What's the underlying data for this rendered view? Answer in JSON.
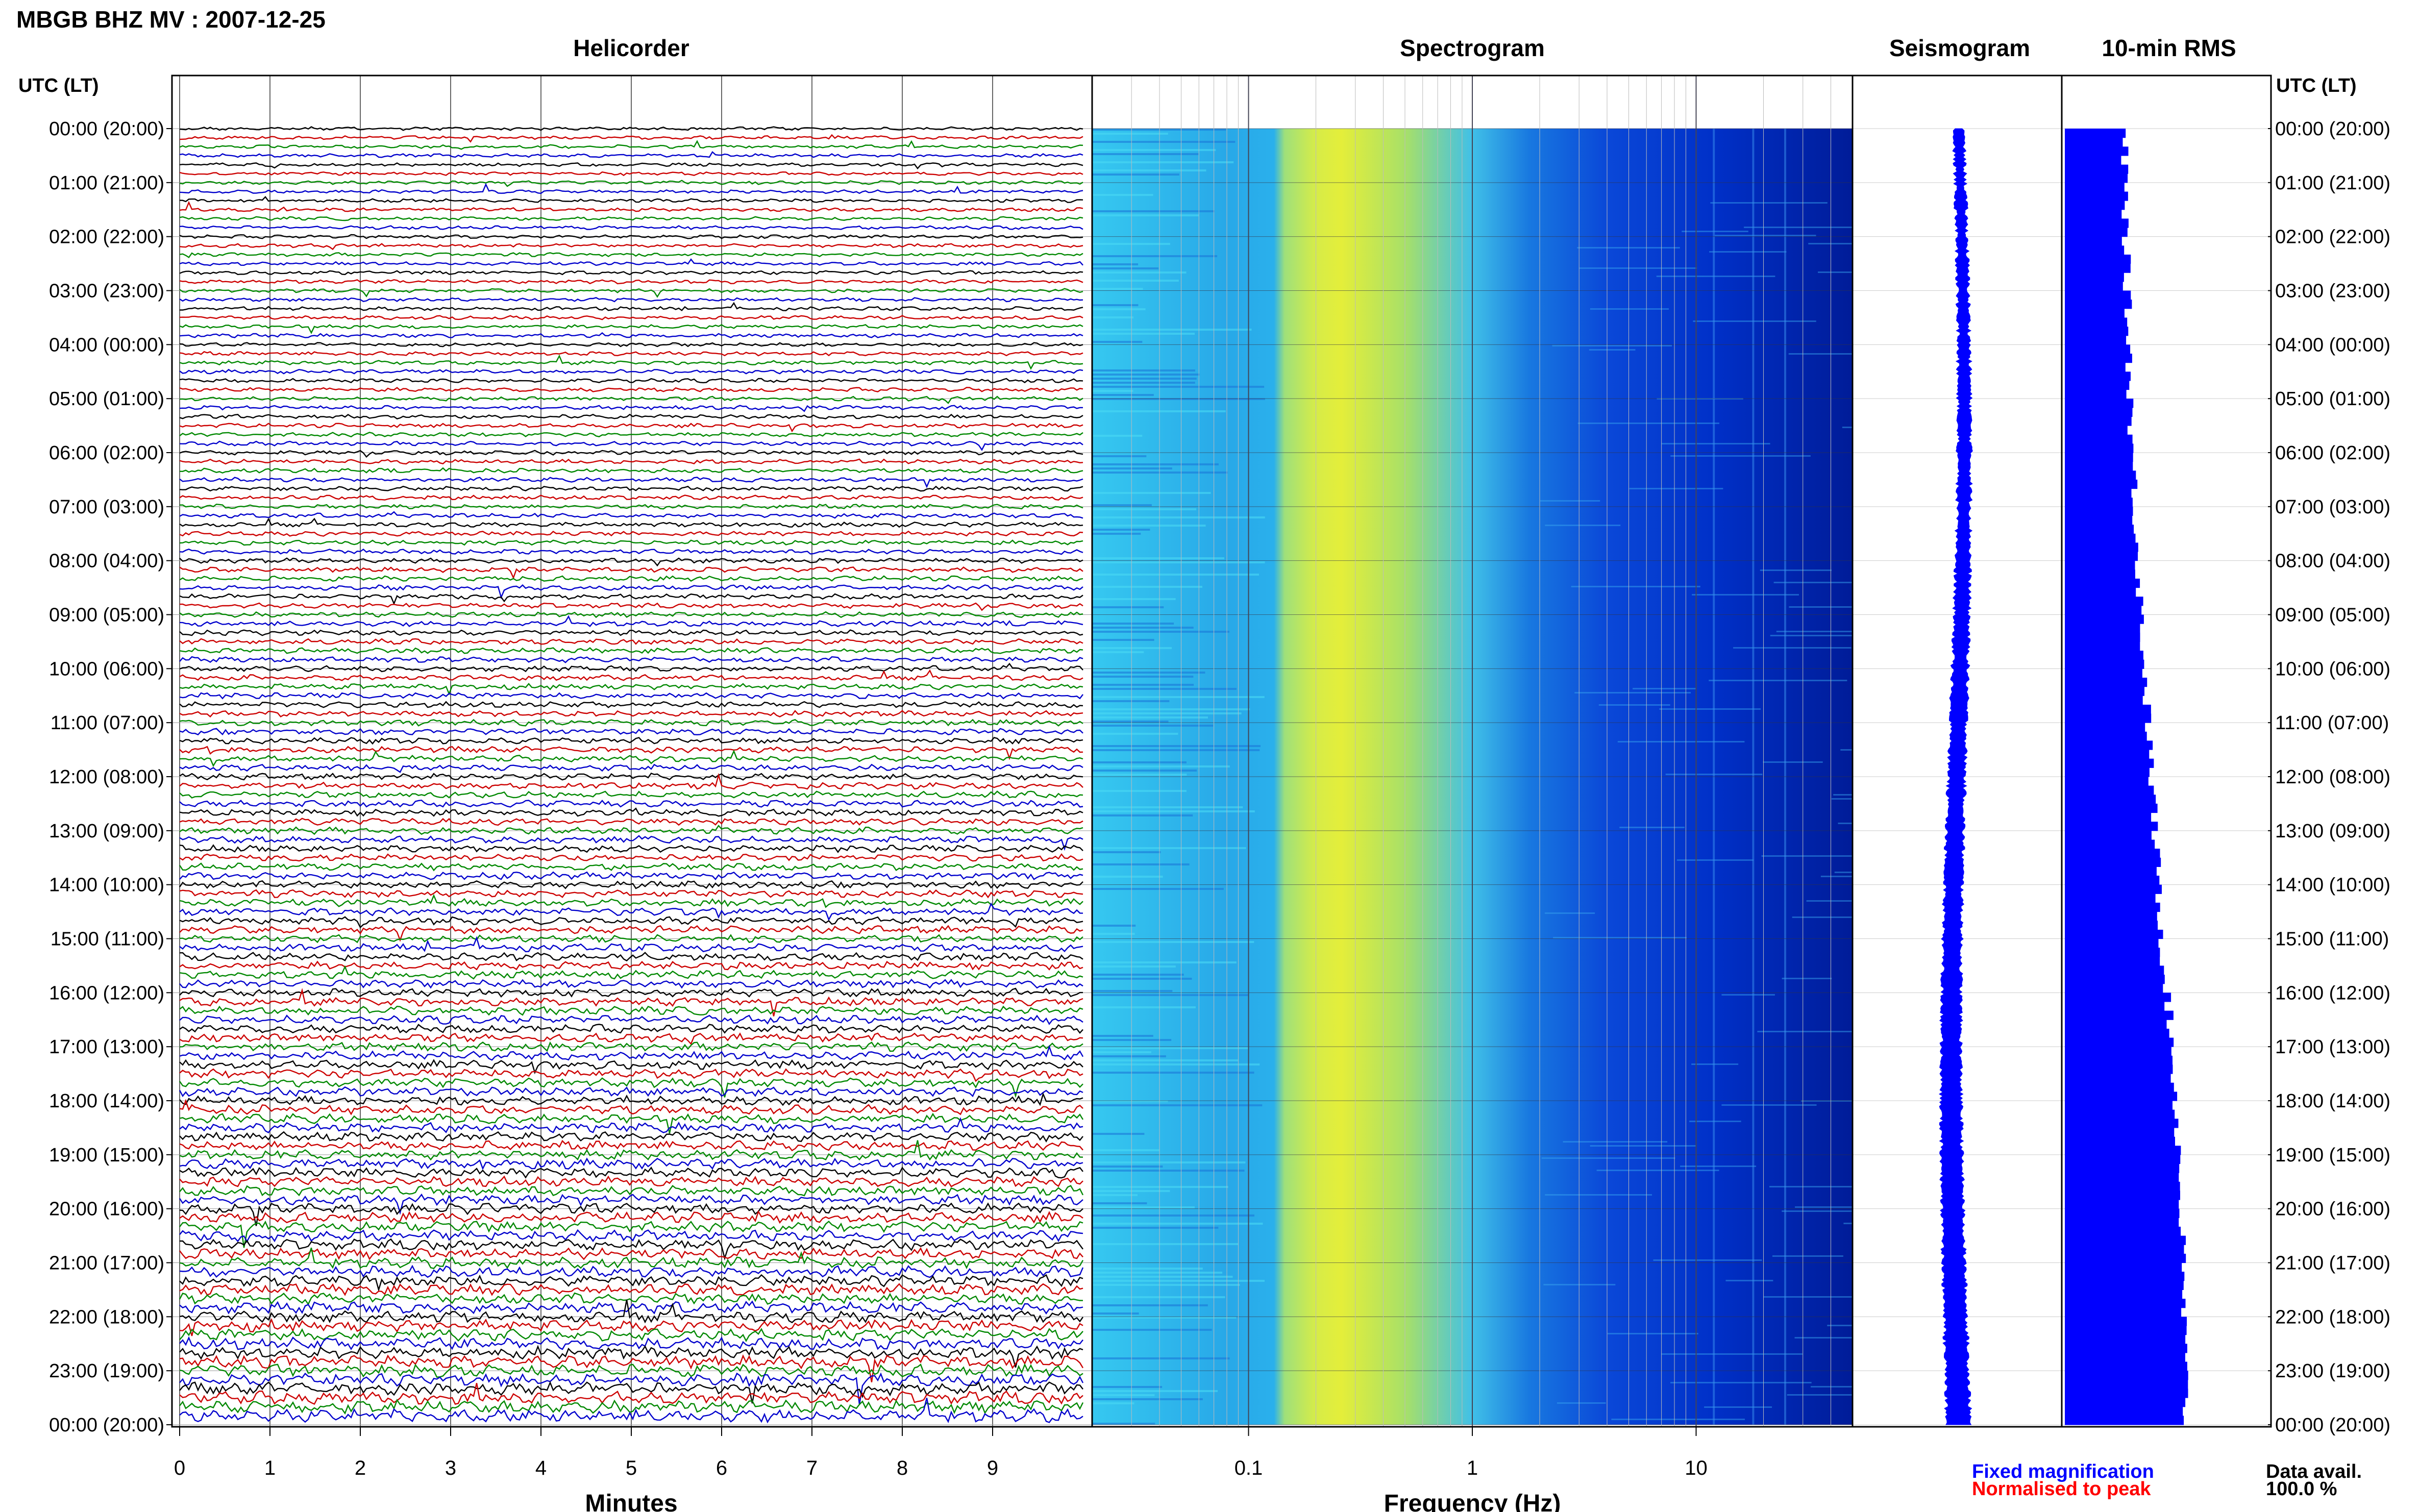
{
  "title": "MBGB BHZ MV : 2007-12-25",
  "panels": {
    "helicorder": "Helicorder",
    "spectrogram": "Spectrogram",
    "seismogram": "Seismogram",
    "rms": "10-min RMS"
  },
  "time_axis_label": "UTC (LT)",
  "time_labels": [
    "00:00 (20:00)",
    "01:00 (21:00)",
    "02:00 (22:00)",
    "03:00 (23:00)",
    "04:00 (00:00)",
    "05:00 (01:00)",
    "06:00 (02:00)",
    "07:00 (03:00)",
    "08:00 (04:00)",
    "09:00 (05:00)",
    "10:00 (06:00)",
    "11:00 (07:00)",
    "12:00 (08:00)",
    "13:00 (09:00)",
    "14:00 (10:00)",
    "15:00 (11:00)",
    "16:00 (12:00)",
    "17:00 (13:00)",
    "18:00 (14:00)",
    "19:00 (15:00)",
    "20:00 (16:00)",
    "21:00 (17:00)",
    "22:00 (18:00)",
    "23:00 (19:00)",
    "00:00 (20:00)"
  ],
  "helicorder_xaxis": {
    "label": "Minutes",
    "ticks": [
      "0",
      "1",
      "2",
      "3",
      "4",
      "5",
      "6",
      "7",
      "8",
      "9"
    ]
  },
  "spectrogram_xaxis": {
    "label": "Frequency (Hz)",
    "ticks": [
      "0.1",
      "1",
      "10"
    ],
    "scale": "log",
    "range": [
      0.02,
      50
    ]
  },
  "legend": {
    "fixed": "Fixed magnification",
    "normalised": "Normalised to peak"
  },
  "data_avail": {
    "label": "Data avail.",
    "value": "100.0 %"
  },
  "colors": {
    "trace_cycle": [
      "#000000",
      "#cc0000",
      "#008800",
      "#0000cc"
    ],
    "seismogram": "#0000ff",
    "rms": "#0000ff",
    "fixed_label": "#0000ff",
    "normalised_label": "#ff0000"
  },
  "chart_data": [
    {
      "type": "line",
      "subtype": "helicorder",
      "trace_minutes": 10,
      "traces_per_hour": 6,
      "hours": 24,
      "xlim": [
        0,
        10
      ]
    },
    {
      "type": "heatmap",
      "subtype": "spectrogram",
      "xscale": "log",
      "xlim": [
        0.02,
        50
      ],
      "colormap": "jet"
    },
    {
      "type": "line",
      "subtype": "seismogram"
    },
    {
      "type": "bar",
      "subtype": "rms",
      "interval_minutes": 10,
      "profile": [
        [
          0,
          0.34
        ],
        [
          3,
          0.36
        ],
        [
          6,
          0.39
        ],
        [
          9,
          0.44
        ],
        [
          12,
          0.5
        ],
        [
          15,
          0.56
        ],
        [
          17,
          0.62
        ],
        [
          19,
          0.66
        ],
        [
          21,
          0.68
        ],
        [
          24,
          0.7
        ]
      ]
    }
  ]
}
